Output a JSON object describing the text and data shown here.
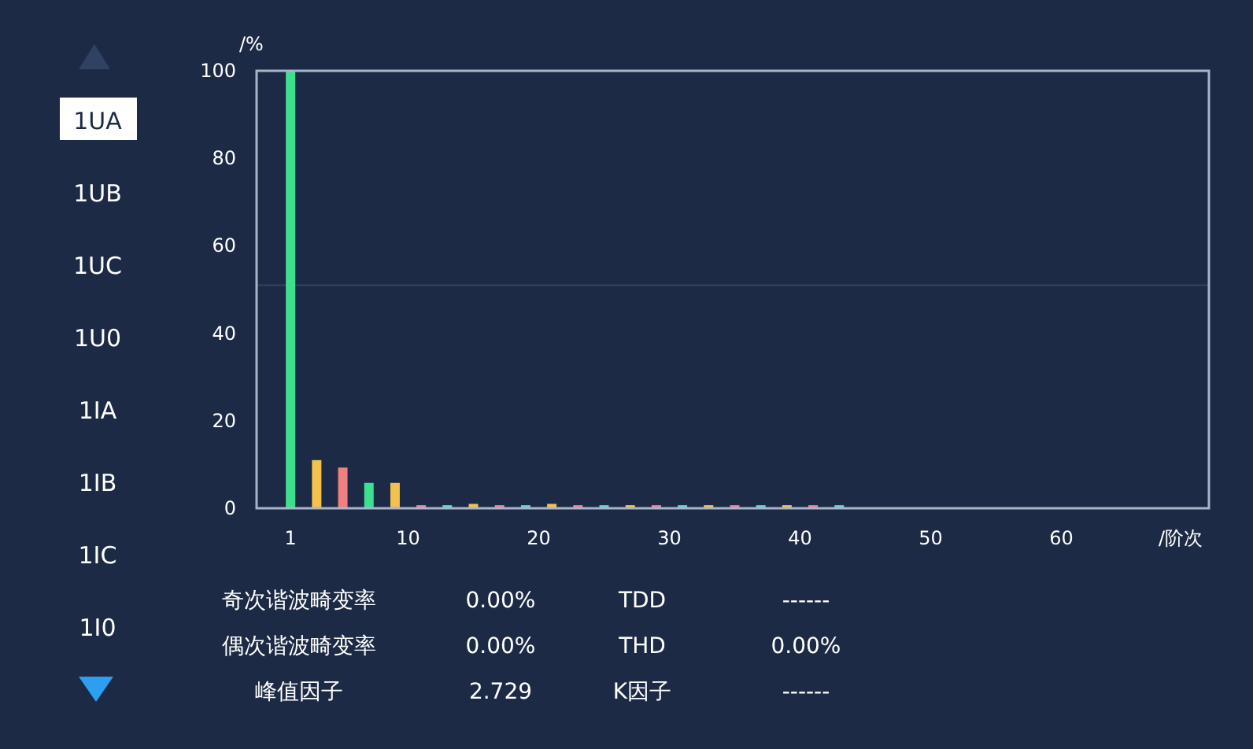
{
  "chart_data": {
    "type": "bar",
    "xlabel": "/阶次",
    "ylabel": "/%",
    "x": [
      1,
      3,
      5,
      7,
      9,
      11,
      13,
      15,
      17,
      19,
      21,
      23,
      25,
      27,
      29,
      31,
      33,
      35,
      37,
      39,
      41,
      43
    ],
    "values": [
      100,
      11,
      9.3,
      5.8,
      5.8,
      0.7,
      0.7,
      1,
      0.7,
      0.7,
      1,
      0.7,
      0.7,
      0.7,
      0.7,
      0.7,
      0.7,
      0.7,
      0.7,
      0.7,
      0.7,
      0.7
    ],
    "colors": [
      "#3ee08f",
      "#f2c14e",
      "#f07f7f",
      "#3ee08f",
      "#f2c14e",
      "#f07f9f",
      "#5fd3d3",
      "#f2c14e",
      "#f07f9f",
      "#5fd3d3",
      "#f2c14e",
      "#f07f9f",
      "#5fd3d3",
      "#f2c14e",
      "#f07f9f",
      "#5fd3d3",
      "#f2c14e",
      "#f07f9f",
      "#5fd3d3",
      "#f2c14e",
      "#f07f9f",
      "#5fd3d3"
    ],
    "xlim": [
      -1.6,
      71.3
    ],
    "xticks": [
      1,
      10,
      20,
      30,
      40,
      50,
      60
    ],
    "ylim": [
      0,
      100
    ],
    "yticks": [
      0,
      20,
      40,
      60,
      80,
      100
    ],
    "ref_lines": [
      {
        "axis": "y",
        "value": 51,
        "color": "#34435e"
      }
    ],
    "grid": false,
    "annotations": [
      "1UA",
      "1UB",
      "1UC",
      "1U0",
      "1IA",
      "1IB",
      "1IC",
      "1I0",
      "奇次谐波畸变率",
      "0.00%",
      "TDD",
      "------",
      "偶次谐波畸变率",
      "0.00%",
      "THD",
      "0.00%",
      "峰值因子",
      "2.729",
      "K因子",
      "------"
    ]
  }
}
